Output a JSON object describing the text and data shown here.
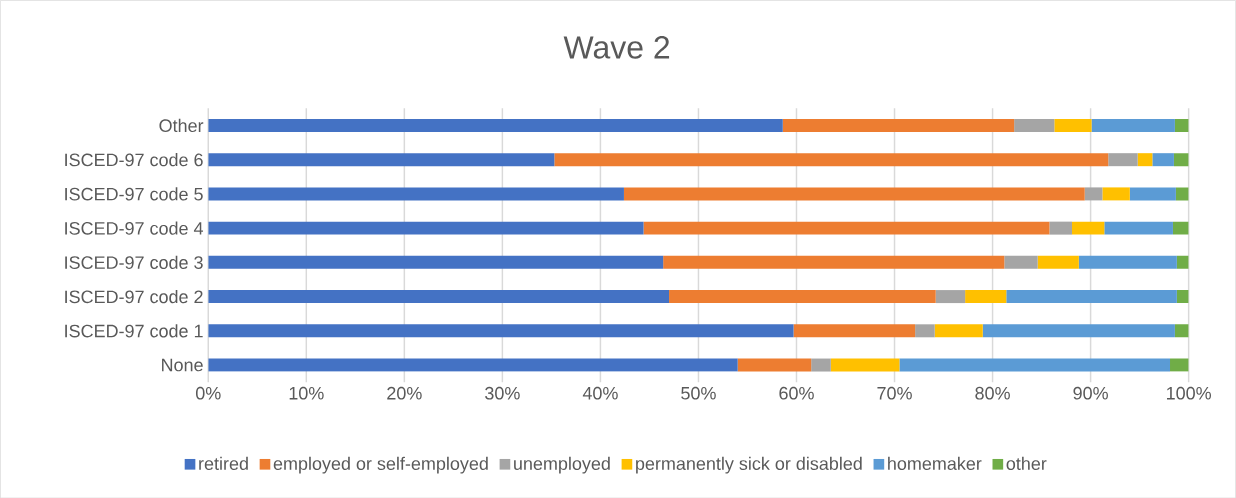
{
  "chart_data": {
    "type": "bar",
    "orientation": "horizontal",
    "stacked": true,
    "title": "Wave 2",
    "categories": [
      "Other",
      "ISCED-97 code 6",
      "ISCED-97 code 5",
      "ISCED-97 code 4",
      "ISCED-97 code 3",
      "ISCED-97 code 2",
      "ISCED-97 code 1",
      "None"
    ],
    "series": [
      {
        "name": "retired",
        "color": "#4472c4",
        "values": [
          58.6,
          35.3,
          42.4,
          44.4,
          46.4,
          47.0,
          59.7,
          54.0
        ]
      },
      {
        "name": "employed or self-employed",
        "color": "#ed7d31",
        "values": [
          23.6,
          56.5,
          47.0,
          41.4,
          34.8,
          27.2,
          12.4,
          7.5
        ]
      },
      {
        "name": "unemployed",
        "color": "#a5a5a5",
        "values": [
          4.1,
          3.0,
          1.8,
          2.3,
          3.4,
          3.0,
          2.0,
          2.0
        ]
      },
      {
        "name": "permanently sick or disabled",
        "color": "#ffc000",
        "values": [
          3.8,
          1.5,
          2.8,
          3.3,
          4.2,
          4.2,
          4.9,
          7.0
        ]
      },
      {
        "name": "homemaker",
        "color": "#5b9bd5",
        "values": [
          8.5,
          2.2,
          4.7,
          7.0,
          10.0,
          17.4,
          19.6,
          27.6
        ]
      },
      {
        "name": "other",
        "color": "#70ad47",
        "values": [
          1.4,
          1.5,
          1.3,
          1.6,
          1.2,
          1.2,
          1.4,
          1.9
        ]
      }
    ],
    "xlim": [
      0,
      100
    ],
    "xticks": [
      {
        "value": 0,
        "label": "0%"
      },
      {
        "value": 10,
        "label": "10%"
      },
      {
        "value": 20,
        "label": "20%"
      },
      {
        "value": 30,
        "label": "30%"
      },
      {
        "value": 40,
        "label": "40%"
      },
      {
        "value": 50,
        "label": "50%"
      },
      {
        "value": 60,
        "label": "60%"
      },
      {
        "value": 70,
        "label": "70%"
      },
      {
        "value": 80,
        "label": "80%"
      },
      {
        "value": 90,
        "label": "90%"
      },
      {
        "value": 100,
        "label": "100%"
      }
    ],
    "grid": "x",
    "legend": "bottom"
  }
}
